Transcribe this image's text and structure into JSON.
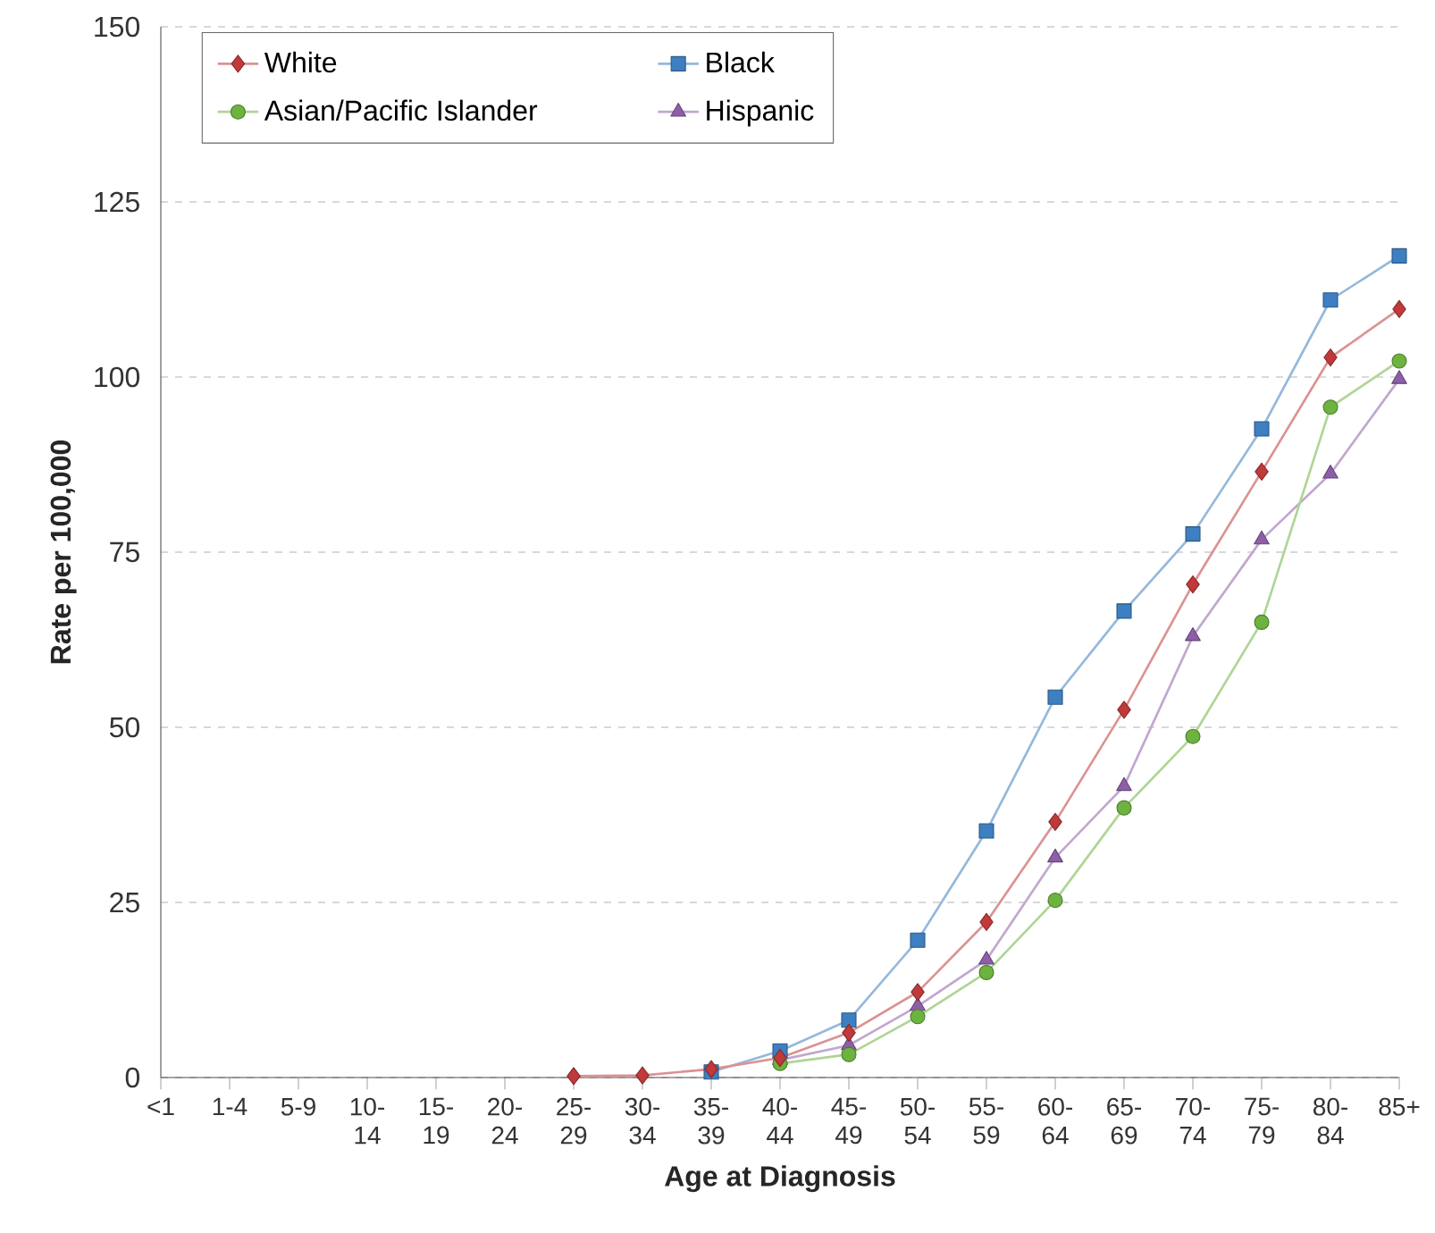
{
  "chart_data": {
    "type": "line",
    "xlabel": "Age at Diagnosis",
    "ylabel": "Rate per 100,000",
    "categories": [
      "<1",
      "1-4",
      "5-9",
      "10-14",
      "15-19",
      "20-24",
      "25-29",
      "30-34",
      "35-39",
      "40-44",
      "45-49",
      "50-54",
      "55-59",
      "60-64",
      "65-69",
      "70-74",
      "75-79",
      "80-84",
      "85+"
    ],
    "series": [
      {
        "name": "White",
        "color": "#c0393b",
        "marker": "diamond",
        "values": [
          null,
          null,
          null,
          null,
          null,
          null,
          0.2,
          0.3,
          1.2,
          2.8,
          6.4,
          12.2,
          22.2,
          36.5,
          52.5,
          70.4,
          86.5,
          102.8,
          109.7
        ]
      },
      {
        "name": "Black",
        "color": "#3d7fc0",
        "marker": "square",
        "values": [
          null,
          null,
          null,
          null,
          null,
          null,
          null,
          null,
          0.8,
          3.8,
          8.2,
          19.6,
          35.2,
          54.3,
          66.6,
          77.6,
          92.6,
          111,
          117.3
        ]
      },
      {
        "name": "Asian/Pacific Islander",
        "color": "#6db33f",
        "marker": "circle",
        "values": [
          null,
          null,
          null,
          null,
          null,
          null,
          null,
          null,
          null,
          2.0,
          3.3,
          8.7,
          15,
          25.3,
          38.5,
          48.7,
          65,
          95.7,
          102.3
        ]
      },
      {
        "name": "Hispanic",
        "color": "#8e5fa8",
        "marker": "triangle",
        "values": [
          null,
          null,
          null,
          null,
          null,
          null,
          null,
          null,
          null,
          2.5,
          4.6,
          10.2,
          16.8,
          31.4,
          41.6,
          63,
          76.8,
          86.2,
          99.7
        ]
      }
    ],
    "ylim": [
      0,
      150
    ],
    "yticks": [
      0,
      25,
      50,
      75,
      100,
      125,
      150
    ],
    "grid": "y",
    "legend": "top left"
  }
}
